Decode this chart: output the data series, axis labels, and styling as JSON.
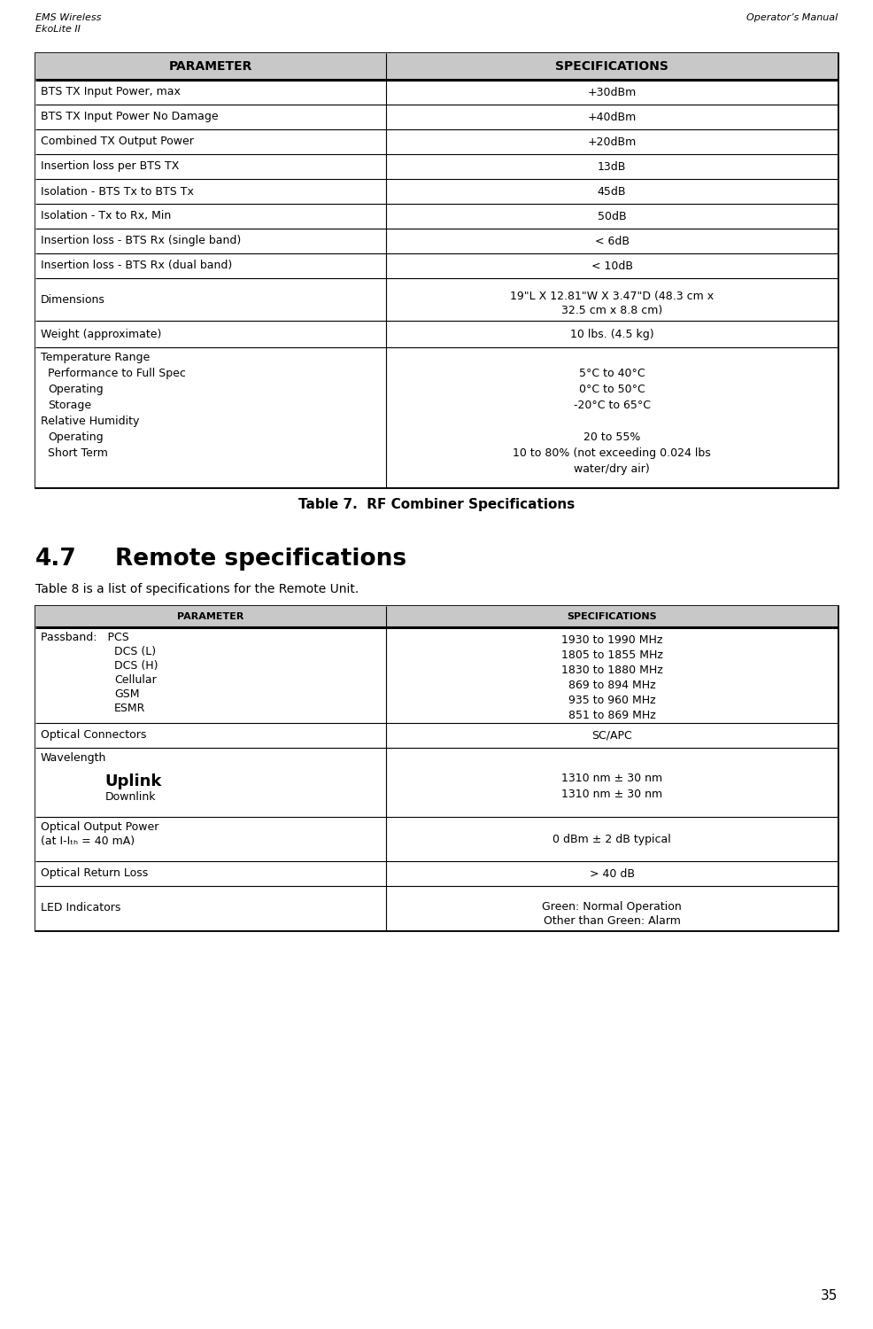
{
  "bg_color": "#ffffff",
  "header_color": "#c8c8c8",
  "page_number": "35",
  "table1_caption": "Table 7.  RF Combiner Specifications",
  "table1_header": [
    "PARAMETER",
    "SPECIFICATIONS"
  ],
  "table1_rows": [
    [
      "BTS TX Input Power, max",
      "+30dBm"
    ],
    [
      "BTS TX Input Power No Damage",
      "+40dBm"
    ],
    [
      "Combined TX Output Power",
      "+20dBm"
    ],
    [
      "Insertion loss per BTS TX",
      "13dB"
    ],
    [
      "Isolation - BTS Tx to BTS Tx",
      "45dB"
    ],
    [
      "Isolation - Tx to Rx, Min",
      "50dB"
    ],
    [
      "Insertion loss - BTS Rx (single band)",
      "< 6dB"
    ],
    [
      "Insertion loss - BTS Rx (dual band)",
      "< 10dB"
    ],
    [
      "Dimensions",
      "19\"L X 12.81\"W X 3.47\"D (48.3 cm x\n32.5 cm x 8.8 cm)"
    ],
    [
      "Weight (approximate)",
      "10 lbs. (4.5 kg)"
    ],
    [
      "Temperature Range\n Performance to Full Spec\n Operating\n Storage\nRelative Humidity\n Operating\n Short Term",
      "\n5°C to 40°C\n0°C to 50°C\n-20°C to 65°C\n\n20 to 55%\n10 to 80% (not exceeding 0.024 lbs\nwater/dry air)"
    ]
  ],
  "section_title_num": "4.7",
  "section_title": "Remote specifications",
  "section_intro": "Table 8 is a list of specifications for the Remote Unit.",
  "table2_header": [
    "PARAMETER",
    "SPECIFICATIONS"
  ],
  "table2_rows": [
    [
      "Passband:   PCS\n                DCS (L)\n                DCS (H)\n                Cellular\n                GSM\n                ESMR",
      "1930 to 1990 MHz\n1805 to 1855 MHz\n1830 to 1880 MHz\n869 to 894 MHz\n935 to 960 MHz\n851 to 869 MHz"
    ],
    [
      "Optical Connectors",
      "SC/APC"
    ],
    [
      "Wavelength\n\n              Uplink\n              Downlink",
      "\n\n1310 nm ± 30 nm\n1310 nm ± 30 nm"
    ],
    [
      "Optical Output Power\n(at I-Iₜₕ = 40 mA)",
      "0 dBm ± 2 dB typical"
    ],
    [
      "Optical Return Loss",
      "> 40 dB"
    ],
    [
      "LED Indicators",
      "Green: Normal Operation\nOther than Green: Alarm"
    ]
  ]
}
